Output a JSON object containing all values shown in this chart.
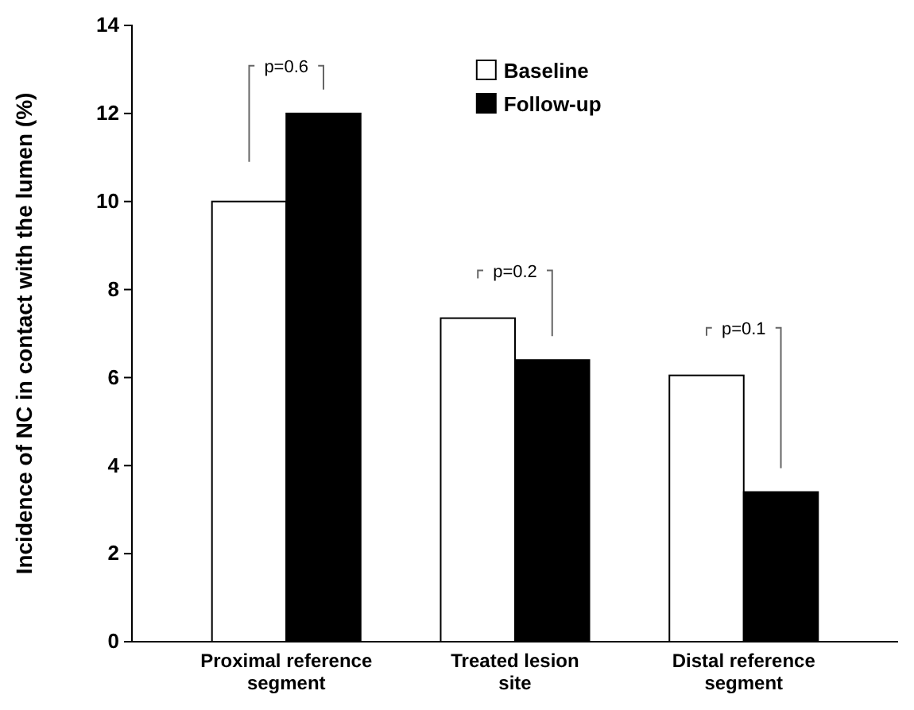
{
  "chart_data": {
    "type": "bar",
    "ylabel": "Incidence of NC in contact with the lumen (%)",
    "categories": [
      "Proximal reference segment",
      "Treated lesion site",
      "Distal reference segment"
    ],
    "series": [
      {
        "name": "Baseline",
        "color": "#ffffff",
        "values": [
          10.0,
          7.35,
          6.05
        ]
      },
      {
        "name": "Follow-up",
        "color": "#000000",
        "values": [
          12.0,
          6.4,
          3.4
        ]
      }
    ],
    "ylim": [
      0,
      14
    ],
    "yticks": [
      0,
      2,
      4,
      6,
      8,
      10,
      12,
      14
    ],
    "grid": false,
    "legend": "top",
    "annotations": [
      "p=0.6",
      "p=0.2",
      "p=0.1"
    ]
  }
}
